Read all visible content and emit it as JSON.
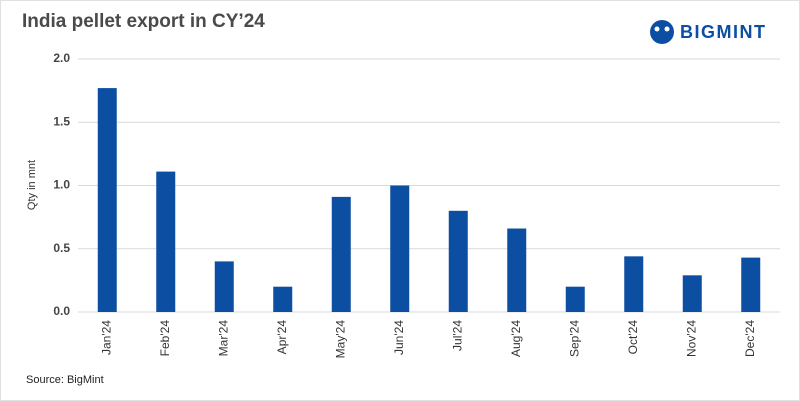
{
  "chart_data": {
    "type": "bar",
    "title": "India pellet export in CY’24",
    "logo": "BIGMINT",
    "y_label": "Qty in mnt",
    "source": "Source: BigMint",
    "categories": [
      "Jan'24",
      "Feb'24",
      "Mar'24",
      "Apr'24",
      "May'24",
      "Jun'24",
      "Jul'24",
      "Aug'24",
      "Sep'24",
      "Oct'24",
      "Nov'24",
      "Dec'24"
    ],
    "values": [
      1.77,
      1.11,
      0.4,
      0.2,
      0.91,
      1.0,
      0.8,
      0.66,
      0.2,
      0.44,
      0.29,
      0.43
    ],
    "color": "#0b4ea2",
    "ylim": [
      0,
      2
    ],
    "yticks": [
      {
        "value": 0,
        "label": "0.0"
      },
      0.5,
      {
        "value": 1,
        "label": "1.0"
      },
      1.5,
      {
        "value": 2,
        "label": "2.0"
      }
    ],
    "grid": true
  }
}
